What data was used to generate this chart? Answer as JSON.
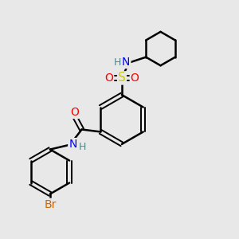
{
  "bg_color": "#e8e8e8",
  "bond_color": "#000000",
  "atom_colors": {
    "N": "#0000ff",
    "H": "#4a8a8a",
    "S": "#cccc00",
    "O": "#ff0000",
    "Br": "#cc6600",
    "C": "#000000"
  }
}
